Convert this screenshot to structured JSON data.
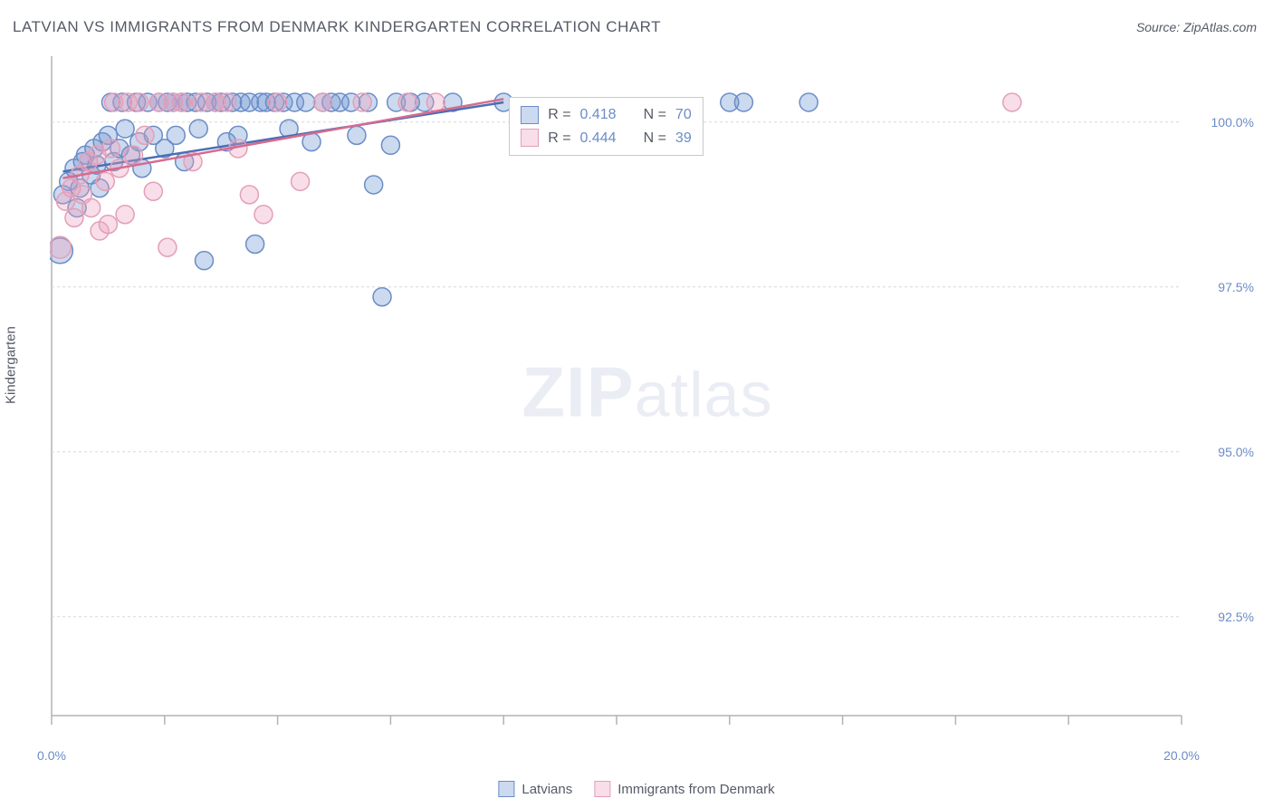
{
  "title": "LATVIAN VS IMMIGRANTS FROM DENMARK KINDERGARTEN CORRELATION CHART",
  "source": "Source: ZipAtlas.com",
  "ylabel": "Kindergarten",
  "watermark_bold": "ZIP",
  "watermark_rest": "atlas",
  "chart": {
    "type": "scatter",
    "xlim": [
      0,
      20
    ],
    "ylim": [
      91,
      101
    ],
    "xtick_positions": [
      0,
      20
    ],
    "xtick_labels": [
      "0.0%",
      "20.0%"
    ],
    "xtick_minor": [
      2,
      4,
      6,
      8,
      10,
      12,
      14,
      16,
      18
    ],
    "ytick_positions": [
      92.5,
      95.0,
      97.5,
      100.0
    ],
    "ytick_labels": [
      "92.5%",
      "95.0%",
      "97.5%",
      "100.0%"
    ],
    "background_color": "#ffffff",
    "grid_color": "#d8d8d8",
    "axis_color": "#b3b3b3",
    "series": [
      {
        "key": "latvians",
        "label": "Latvians",
        "fill": "rgba(110,150,210,0.35)",
        "stroke": "#6b8cc7",
        "line_color": "#4a6fb5",
        "r_label": "R =",
        "r_value": "0.418",
        "n_label": "N =",
        "n_value": "70",
        "trend": {
          "x1": 0.2,
          "y1": 99.25,
          "x2": 8.0,
          "y2": 100.3
        },
        "points": [
          {
            "x": 0.15,
            "y": 98.05,
            "r": 14
          },
          {
            "x": 0.2,
            "y": 98.9
          },
          {
            "x": 0.3,
            "y": 99.1
          },
          {
            "x": 0.4,
            "y": 99.3
          },
          {
            "x": 0.45,
            "y": 98.7
          },
          {
            "x": 0.5,
            "y": 99.0
          },
          {
            "x": 0.55,
            "y": 99.4
          },
          {
            "x": 0.6,
            "y": 99.5
          },
          {
            "x": 0.7,
            "y": 99.2
          },
          {
            "x": 0.75,
            "y": 99.6
          },
          {
            "x": 0.8,
            "y": 99.35
          },
          {
            "x": 0.85,
            "y": 99.0
          },
          {
            "x": 0.9,
            "y": 99.7
          },
          {
            "x": 1.0,
            "y": 99.8
          },
          {
            "x": 1.05,
            "y": 100.3
          },
          {
            "x": 1.1,
            "y": 99.4
          },
          {
            "x": 1.2,
            "y": 99.6
          },
          {
            "x": 1.25,
            "y": 100.3
          },
          {
            "x": 1.3,
            "y": 99.9
          },
          {
            "x": 1.4,
            "y": 99.5
          },
          {
            "x": 1.5,
            "y": 100.3
          },
          {
            "x": 1.55,
            "y": 99.7
          },
          {
            "x": 1.6,
            "y": 99.3
          },
          {
            "x": 1.7,
            "y": 100.3
          },
          {
            "x": 1.8,
            "y": 99.8
          },
          {
            "x": 1.9,
            "y": 100.3
          },
          {
            "x": 2.0,
            "y": 99.6
          },
          {
            "x": 2.05,
            "y": 100.3
          },
          {
            "x": 2.15,
            "y": 100.3
          },
          {
            "x": 2.2,
            "y": 99.8
          },
          {
            "x": 2.3,
            "y": 100.3
          },
          {
            "x": 2.35,
            "y": 99.4
          },
          {
            "x": 2.4,
            "y": 100.3
          },
          {
            "x": 2.55,
            "y": 100.3
          },
          {
            "x": 2.6,
            "y": 99.9
          },
          {
            "x": 2.7,
            "y": 97.9
          },
          {
            "x": 2.75,
            "y": 100.3
          },
          {
            "x": 2.9,
            "y": 100.3
          },
          {
            "x": 3.0,
            "y": 100.3
          },
          {
            "x": 3.1,
            "y": 99.7
          },
          {
            "x": 3.2,
            "y": 100.3
          },
          {
            "x": 3.3,
            "y": 99.8
          },
          {
            "x": 3.35,
            "y": 100.3
          },
          {
            "x": 3.5,
            "y": 100.3
          },
          {
            "x": 3.6,
            "y": 98.15
          },
          {
            "x": 3.7,
            "y": 100.3
          },
          {
            "x": 3.8,
            "y": 100.3
          },
          {
            "x": 3.95,
            "y": 100.3
          },
          {
            "x": 4.1,
            "y": 100.3
          },
          {
            "x": 4.2,
            "y": 99.9
          },
          {
            "x": 4.3,
            "y": 100.3
          },
          {
            "x": 4.5,
            "y": 100.3
          },
          {
            "x": 4.6,
            "y": 99.7
          },
          {
            "x": 4.8,
            "y": 100.3
          },
          {
            "x": 4.95,
            "y": 100.3
          },
          {
            "x": 5.1,
            "y": 100.3
          },
          {
            "x": 5.3,
            "y": 100.3
          },
          {
            "x": 5.4,
            "y": 99.8
          },
          {
            "x": 5.6,
            "y": 100.3
          },
          {
            "x": 5.7,
            "y": 99.05
          },
          {
            "x": 5.85,
            "y": 97.35
          },
          {
            "x": 6.0,
            "y": 99.65
          },
          {
            "x": 6.1,
            "y": 100.3
          },
          {
            "x": 6.35,
            "y": 100.3
          },
          {
            "x": 6.6,
            "y": 100.3
          },
          {
            "x": 7.1,
            "y": 100.3
          },
          {
            "x": 8.0,
            "y": 100.3
          },
          {
            "x": 12.0,
            "y": 100.3
          },
          {
            "x": 12.25,
            "y": 100.3
          },
          {
            "x": 13.4,
            "y": 100.3
          }
        ]
      },
      {
        "key": "denmark",
        "label": "Immigrants from Denmark",
        "fill": "rgba(235,160,190,0.35)",
        "stroke": "#e49fb8",
        "line_color": "#d66b8f",
        "r_label": "R =",
        "r_value": "0.444",
        "n_label": "N =",
        "n_value": "39",
        "trend": {
          "x1": 0.2,
          "y1": 99.15,
          "x2": 8.0,
          "y2": 100.35
        },
        "points": [
          {
            "x": 0.15,
            "y": 98.1,
            "r": 12
          },
          {
            "x": 0.25,
            "y": 98.8
          },
          {
            "x": 0.35,
            "y": 99.0
          },
          {
            "x": 0.4,
            "y": 98.55
          },
          {
            "x": 0.5,
            "y": 99.2
          },
          {
            "x": 0.55,
            "y": 98.9
          },
          {
            "x": 0.65,
            "y": 99.4
          },
          {
            "x": 0.7,
            "y": 98.7
          },
          {
            "x": 0.8,
            "y": 99.5
          },
          {
            "x": 0.85,
            "y": 98.35
          },
          {
            "x": 0.95,
            "y": 99.1
          },
          {
            "x": 1.0,
            "y": 98.45
          },
          {
            "x": 1.05,
            "y": 99.6
          },
          {
            "x": 1.1,
            "y": 100.3
          },
          {
            "x": 1.2,
            "y": 99.3
          },
          {
            "x": 1.3,
            "y": 98.6
          },
          {
            "x": 1.35,
            "y": 100.3
          },
          {
            "x": 1.45,
            "y": 99.5
          },
          {
            "x": 1.55,
            "y": 100.3
          },
          {
            "x": 1.65,
            "y": 99.8
          },
          {
            "x": 1.8,
            "y": 98.95
          },
          {
            "x": 1.9,
            "y": 100.3
          },
          {
            "x": 2.05,
            "y": 98.1
          },
          {
            "x": 2.15,
            "y": 100.3
          },
          {
            "x": 2.3,
            "y": 100.3
          },
          {
            "x": 2.5,
            "y": 99.4
          },
          {
            "x": 2.65,
            "y": 100.3
          },
          {
            "x": 2.9,
            "y": 100.3
          },
          {
            "x": 3.1,
            "y": 100.3
          },
          {
            "x": 3.3,
            "y": 99.6
          },
          {
            "x": 3.5,
            "y": 98.9
          },
          {
            "x": 3.75,
            "y": 98.6
          },
          {
            "x": 4.0,
            "y": 100.3
          },
          {
            "x": 4.4,
            "y": 99.1
          },
          {
            "x": 4.8,
            "y": 100.3
          },
          {
            "x": 5.5,
            "y": 100.3
          },
          {
            "x": 6.3,
            "y": 100.3
          },
          {
            "x": 6.8,
            "y": 100.3
          },
          {
            "x": 17.0,
            "y": 100.3
          }
        ]
      }
    ],
    "marker_default_r": 10,
    "marker_stroke_w": 1.5,
    "trend_stroke_w": 2.5
  },
  "legend_bottom": [
    {
      "ref": 0
    },
    {
      "ref": 1
    }
  ]
}
